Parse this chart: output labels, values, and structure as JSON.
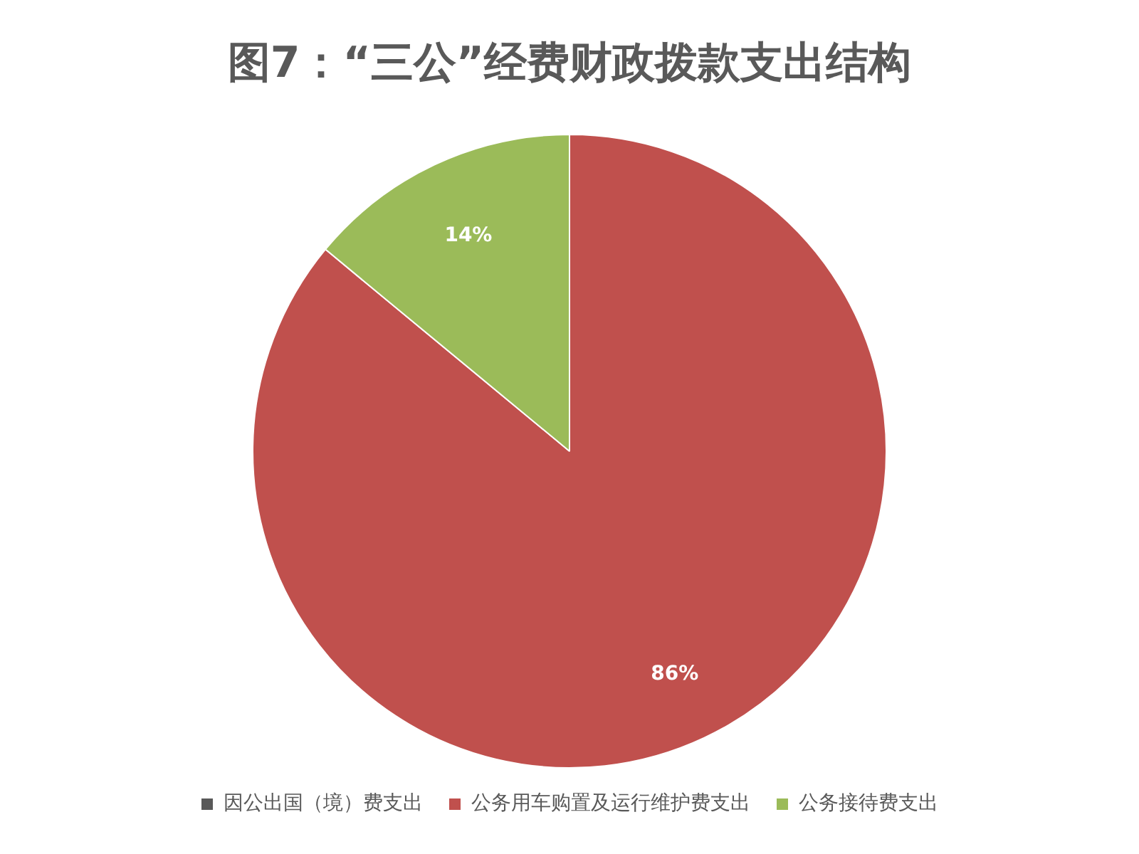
{
  "chart_data": {
    "type": "pie",
    "title": "图7：“三公”经费财政拨款支出结构",
    "categories": [
      "因公出国（境）费支出",
      "公务用车购置及运行维护费支出",
      "公务接待费支出"
    ],
    "values": [
      0,
      86,
      14
    ],
    "colors": [
      "#595959",
      "#c0504d",
      "#9bbb59"
    ],
    "value_labels": [
      null,
      "86%",
      "14%"
    ],
    "legend": "bottom"
  }
}
